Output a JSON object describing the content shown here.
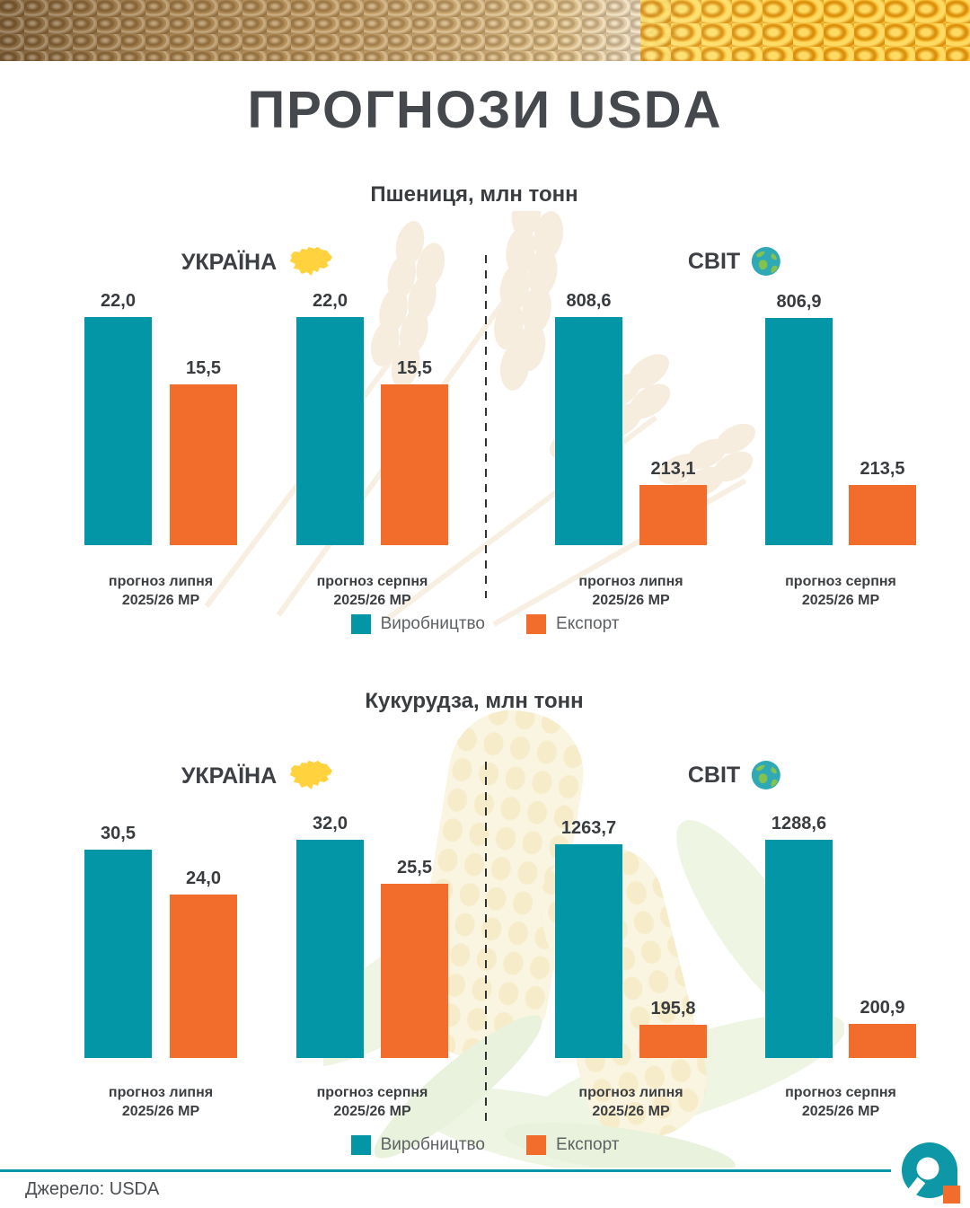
{
  "page": {
    "title": "ПРОГНОЗИ USDA",
    "source": "Джерело: USDA"
  },
  "legend": {
    "production": "Виробництво",
    "export": "Експорт"
  },
  "colors": {
    "production": "#0296a7",
    "export": "#f26c2c",
    "rule": "#0296a7",
    "flag_blue": "#3e7bd5",
    "flag_yellow": "#ffd23e",
    "globe_sea": "#2fa9b6",
    "globe_land": "#82c34f",
    "logo_teal": "#0e97a6",
    "logo_orange": "#f26c2c"
  },
  "chart_data": [
    {
      "type": "bar",
      "title": "Пшениця, млн тонн",
      "unit": "млн тонн",
      "legend": [
        "Виробництво",
        "Експорт"
      ],
      "legend_position": "bottom",
      "grid": false,
      "regions": [
        {
          "name": "УКРАЇНА",
          "icon": "ukraine-map-flag-icon",
          "categories": [
            [
              "прогноз липня",
              "2025/26 МР"
            ],
            [
              "прогноз серпня",
              "2025/26 МР"
            ]
          ],
          "series": [
            {
              "name": "Виробництво",
              "values": [
                22.0,
                22.0
              ],
              "labels": [
                "22,0",
                "22,0"
              ]
            },
            {
              "name": "Експорт",
              "values": [
                15.5,
                15.5
              ],
              "labels": [
                "15,5",
                "15,5"
              ]
            }
          ]
        },
        {
          "name": "СВІТ",
          "icon": "globe-icon",
          "categories": [
            [
              "прогноз липня",
              "2025/26 МР"
            ],
            [
              "прогноз серпня",
              "2025/26 МР"
            ]
          ],
          "series": [
            {
              "name": "Виробництво",
              "values": [
                808.6,
                806.9
              ],
              "labels": [
                "808,6",
                "806,9"
              ]
            },
            {
              "name": "Експорт",
              "values": [
                213.1,
                213.5
              ],
              "labels": [
                "213,1",
                "213,5"
              ]
            }
          ]
        }
      ]
    },
    {
      "type": "bar",
      "title": "Кукурудза, млн тонн",
      "unit": "млн тонн",
      "legend": [
        "Виробництво",
        "Експорт"
      ],
      "legend_position": "bottom",
      "grid": false,
      "regions": [
        {
          "name": "УКРАЇНА",
          "icon": "ukraine-map-flag-icon",
          "categories": [
            [
              "прогноз липня",
              "2025/26 МР"
            ],
            [
              "прогноз серпня",
              "2025/26 МР"
            ]
          ],
          "series": [
            {
              "name": "Виробництво",
              "values": [
                30.5,
                32.0
              ],
              "labels": [
                "30,5",
                "32,0"
              ]
            },
            {
              "name": "Експорт",
              "values": [
                24.0,
                25.5
              ],
              "labels": [
                "24,0",
                "25,5"
              ]
            }
          ]
        },
        {
          "name": "СВІТ",
          "icon": "globe-icon",
          "categories": [
            [
              "прогноз липня",
              "2025/26 МР"
            ],
            [
              "прогноз серпня",
              "2025/26 МР"
            ]
          ],
          "series": [
            {
              "name": "Виробництво",
              "values": [
                1263.7,
                1288.6
              ],
              "labels": [
                "1263,7",
                "1288,6"
              ]
            },
            {
              "name": "Експорт",
              "values": [
                195.8,
                200.9
              ],
              "labels": [
                "195,8",
                "200,9"
              ]
            }
          ]
        }
      ]
    }
  ]
}
